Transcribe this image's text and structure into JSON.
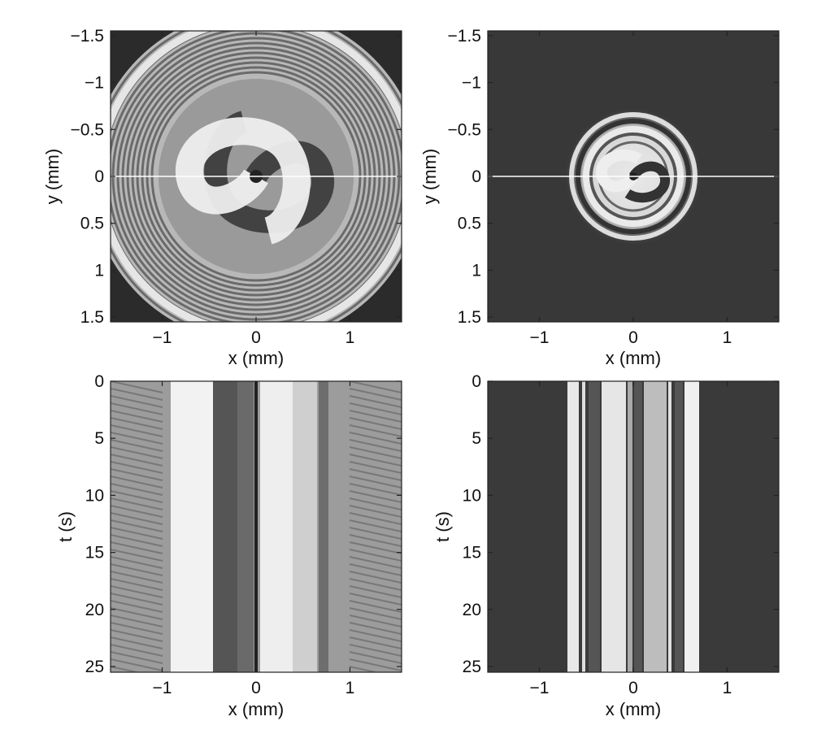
{
  "chart_data": [
    {
      "id": "top-left",
      "type": "heatmap",
      "image": "grayscale spiral wave with dense concentric rings, bright interior",
      "xlabel": "x (mm)",
      "ylabel": "y (mm)",
      "xlim": [
        -1.55,
        1.55
      ],
      "ylim": [
        -1.55,
        1.55
      ],
      "y_reversed": true,
      "xticks": [
        {
          "v": -1,
          "label": "−1"
        },
        {
          "v": 0,
          "label": "0"
        },
        {
          "v": 1,
          "label": "1"
        }
      ],
      "yticks": [
        {
          "v": -1.5,
          "label": "−1.5"
        },
        {
          "v": -1,
          "label": "−1"
        },
        {
          "v": -0.5,
          "label": "−0.5"
        },
        {
          "v": 0,
          "label": "0"
        },
        {
          "v": 0.5,
          "label": "0.5"
        },
        {
          "v": 1,
          "label": "1"
        },
        {
          "v": 1.5,
          "label": "1.5"
        }
      ],
      "reference_line": {
        "y": 0,
        "color": "#ffffff"
      }
    },
    {
      "id": "top-right",
      "type": "heatmap",
      "image": "compact grayscale spiral on dark background",
      "xlabel": "x (mm)",
      "ylabel": "y (mm)",
      "xlim": [
        -1.55,
        1.55
      ],
      "ylim": [
        -1.55,
        1.55
      ],
      "y_reversed": true,
      "xticks": [
        {
          "v": -1,
          "label": "−1"
        },
        {
          "v": 0,
          "label": "0"
        },
        {
          "v": 1,
          "label": "1"
        }
      ],
      "yticks": [
        {
          "v": -1.5,
          "label": "−1.5"
        },
        {
          "v": -1,
          "label": "−1"
        },
        {
          "v": -0.5,
          "label": "−0.5"
        },
        {
          "v": 0,
          "label": "0"
        },
        {
          "v": 0.5,
          "label": "0.5"
        },
        {
          "v": 1,
          "label": "1"
        },
        {
          "v": 1.5,
          "label": "1.5"
        }
      ],
      "reference_line": {
        "y": 0,
        "color": "#ffffff"
      }
    },
    {
      "id": "bottom-left",
      "type": "heatmap",
      "image": "space-time plot along y = 0, vertical bands with zig-zag edges",
      "xlabel": "x (mm)",
      "ylabel": "t (s)",
      "xlim": [
        -1.55,
        1.55
      ],
      "ylim": [
        0,
        25.5
      ],
      "y_reversed": true,
      "xticks": [
        {
          "v": -1,
          "label": "−1"
        },
        {
          "v": 0,
          "label": "0"
        },
        {
          "v": 1,
          "label": "1"
        }
      ],
      "yticks": [
        {
          "v": 0,
          "label": "0"
        },
        {
          "v": 5,
          "label": "5"
        },
        {
          "v": 10,
          "label": "10"
        },
        {
          "v": 15,
          "label": "15"
        },
        {
          "v": 20,
          "label": "20"
        },
        {
          "v": 25,
          "label": "25"
        }
      ]
    },
    {
      "id": "bottom-right",
      "type": "heatmap",
      "image": "space-time plot along y = 0, narrow bright stripes on dark background",
      "xlabel": "x (mm)",
      "ylabel": "t (s)",
      "xlim": [
        -1.55,
        1.55
      ],
      "ylim": [
        0,
        25.5
      ],
      "y_reversed": true,
      "xticks": [
        {
          "v": -1,
          "label": "−1"
        },
        {
          "v": 0,
          "label": "0"
        },
        {
          "v": 1,
          "label": "1"
        }
      ],
      "yticks": [
        {
          "v": 0,
          "label": "0"
        },
        {
          "v": 5,
          "label": "5"
        },
        {
          "v": 10,
          "label": "10"
        },
        {
          "v": 15,
          "label": "15"
        },
        {
          "v": 20,
          "label": "20"
        },
        {
          "v": 25,
          "label": "25"
        }
      ]
    }
  ]
}
